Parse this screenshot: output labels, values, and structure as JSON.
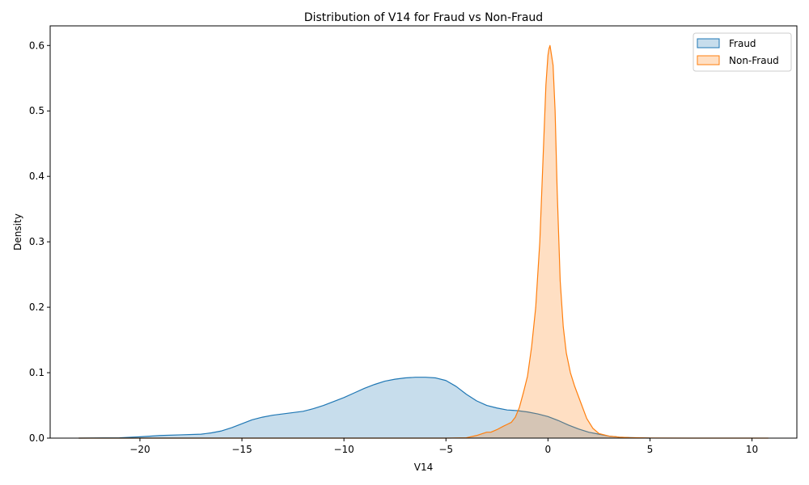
{
  "chart_data": {
    "type": "area",
    "title": "Distribution of V14 for Fraud vs Non-Fraud",
    "xlabel": "V14",
    "ylabel": "Density",
    "xlim": [
      -24.4,
      12.2
    ],
    "ylim": [
      0,
      0.63
    ],
    "xticks": [
      -20,
      -15,
      -10,
      -5,
      0,
      5,
      10
    ],
    "xtick_labels": [
      "−20",
      "−15",
      "−10",
      "−5",
      "0",
      "5",
      "10"
    ],
    "yticks": [
      0.0,
      0.1,
      0.2,
      0.3,
      0.4,
      0.5,
      0.6
    ],
    "ytick_labels": [
      "0.0",
      "0.1",
      "0.2",
      "0.3",
      "0.4",
      "0.5",
      "0.6"
    ],
    "grid": false,
    "legend_position": "top-right",
    "series": [
      {
        "name": "Fraud",
        "color": "#1f77b4",
        "fill_opacity": 0.25,
        "x": [
          -23,
          -21,
          -20,
          -19,
          -18,
          -17,
          -16.5,
          -16,
          -15.5,
          -15,
          -14.5,
          -14,
          -13.5,
          -13,
          -12.5,
          -12,
          -11.5,
          -11,
          -10.5,
          -10,
          -9.5,
          -9,
          -8.5,
          -8,
          -7.5,
          -7,
          -6.5,
          -6,
          -5.5,
          -5,
          -4.5,
          -4,
          -3.5,
          -3,
          -2.5,
          -2,
          -1.5,
          -1,
          -0.5,
          0,
          0.5,
          1,
          1.5,
          2,
          2.5,
          3,
          3.5,
          4,
          4.5,
          5
        ],
        "y": [
          0.0,
          0.0005,
          0.002,
          0.004,
          0.005,
          0.006,
          0.008,
          0.011,
          0.016,
          0.022,
          0.028,
          0.032,
          0.035,
          0.037,
          0.039,
          0.041,
          0.045,
          0.05,
          0.056,
          0.062,
          0.069,
          0.076,
          0.082,
          0.087,
          0.09,
          0.092,
          0.093,
          0.093,
          0.092,
          0.088,
          0.079,
          0.067,
          0.057,
          0.05,
          0.046,
          0.043,
          0.042,
          0.04,
          0.037,
          0.033,
          0.027,
          0.02,
          0.014,
          0.009,
          0.006,
          0.003,
          0.0015,
          0.0008,
          0.0003,
          0.0
        ]
      },
      {
        "name": "Non-Fraud",
        "color": "#ff7f0e",
        "fill_opacity": 0.25,
        "x": [
          -23,
          -5,
          -4,
          -3.5,
          -3.2,
          -3,
          -2.8,
          -2.5,
          -2.2,
          -2,
          -1.8,
          -1.6,
          -1.4,
          -1.2,
          -1,
          -0.8,
          -0.6,
          -0.4,
          -0.2,
          -0.1,
          0,
          0.05,
          0.1,
          0.15,
          0.25,
          0.35,
          0.45,
          0.6,
          0.75,
          0.9,
          1.1,
          1.3,
          1.6,
          1.9,
          2.2,
          2.5,
          3,
          3.5,
          4,
          5,
          7,
          10.8
        ],
        "y": [
          0.0,
          0.0,
          0.0005,
          0.004,
          0.007,
          0.009,
          0.009,
          0.013,
          0.018,
          0.021,
          0.024,
          0.032,
          0.047,
          0.07,
          0.095,
          0.14,
          0.2,
          0.3,
          0.46,
          0.54,
          0.585,
          0.595,
          0.6,
          0.59,
          0.57,
          0.5,
          0.38,
          0.24,
          0.17,
          0.13,
          0.1,
          0.08,
          0.055,
          0.03,
          0.015,
          0.007,
          0.003,
          0.0015,
          0.0008,
          0.0002,
          0.0,
          0.0
        ]
      }
    ]
  }
}
